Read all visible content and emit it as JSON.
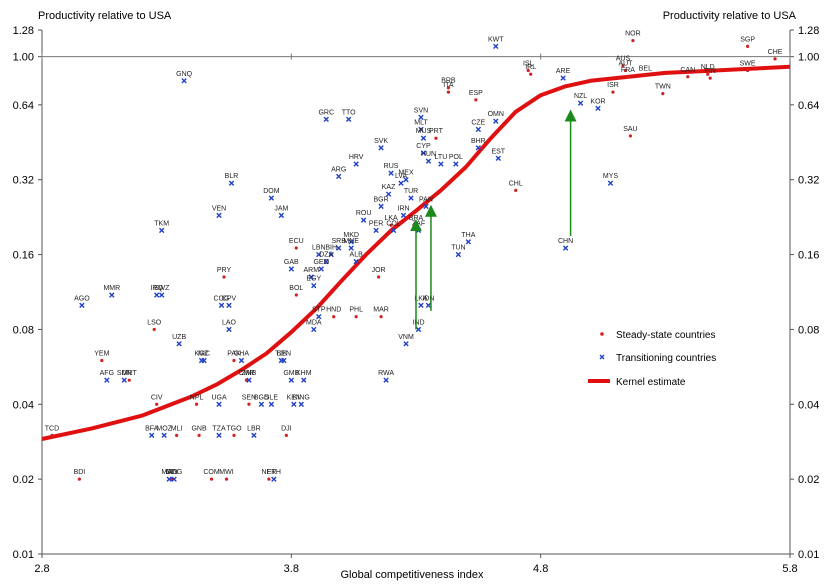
{
  "chart_data": {
    "type": "scatter",
    "title_left": "Productivity relative to USA",
    "title_right": "Productivity relative to USA",
    "xlabel": "Global competitiveness index",
    "xlim": [
      2.8,
      5.8
    ],
    "ylim": [
      0.01,
      1.28
    ],
    "y_scale": "log",
    "x_ticks": [
      "2.8",
      "3.8",
      "4.8",
      "5.8"
    ],
    "y_ticks": [
      "0.01",
      "0.02",
      "0.04",
      "0.08",
      "0.16",
      "0.32",
      "0.64",
      "1.00",
      "1.28"
    ],
    "reference_line": 1.0,
    "legend": {
      "position": "right",
      "entries": [
        "Steady-state countries",
        "Transitioning countries",
        "Kernel estimate"
      ]
    },
    "colors": {
      "steady": "#d42020",
      "transitioning": "#2040c8",
      "kernel": "#e01010",
      "arrow": "#1a8a1a"
    },
    "steady_state": [
      {
        "label": "NOR",
        "x": 5.17,
        "y": 1.16
      },
      {
        "label": "SGP",
        "x": 5.63,
        "y": 1.1
      },
      {
        "label": "CHE",
        "x": 5.74,
        "y": 0.98
      },
      {
        "label": "AUS",
        "x": 5.13,
        "y": 0.92
      },
      {
        "label": "AUT",
        "x": 5.14,
        "y": 0.88
      },
      {
        "label": "FRA",
        "x": 5.15,
        "y": 0.83
      },
      {
        "label": "BEL",
        "x": 5.22,
        "y": 0.84
      },
      {
        "label": "SWE",
        "x": 5.63,
        "y": 0.88
      },
      {
        "label": "CAN",
        "x": 5.39,
        "y": 0.83
      },
      {
        "label": "NLD",
        "x": 5.47,
        "y": 0.85
      },
      {
        "label": "FIN",
        "x": 5.48,
        "y": 0.82
      },
      {
        "label": "TWN",
        "x": 5.29,
        "y": 0.71
      },
      {
        "label": "ISR",
        "x": 5.09,
        "y": 0.72
      },
      {
        "label": "SAU",
        "x": 5.16,
        "y": 0.48
      },
      {
        "label": "ISL",
        "x": 4.75,
        "y": 0.88
      },
      {
        "label": "IRL",
        "x": 4.76,
        "y": 0.85
      },
      {
        "label": "ESP",
        "x": 4.54,
        "y": 0.67
      },
      {
        "label": "ITA",
        "x": 4.43,
        "y": 0.72
      },
      {
        "label": "BRB",
        "x": 4.43,
        "y": 0.75
      },
      {
        "label": "PRT",
        "x": 4.38,
        "y": 0.47
      },
      {
        "label": "CHL",
        "x": 4.7,
        "y": 0.29
      },
      {
        "label": "LKA",
        "x": 4.2,
        "y": 0.21
      },
      {
        "label": "ECU",
        "x": 3.82,
        "y": 0.17
      },
      {
        "label": "PRY",
        "x": 3.53,
        "y": 0.13
      },
      {
        "label": "BOL",
        "x": 3.82,
        "y": 0.11
      },
      {
        "label": "JOR",
        "x": 4.15,
        "y": 0.13
      },
      {
        "label": "HND",
        "x": 3.97,
        "y": 0.09
      },
      {
        "label": "PHL",
        "x": 4.06,
        "y": 0.09
      },
      {
        "label": "MAR",
        "x": 4.16,
        "y": 0.09
      },
      {
        "label": "LSO",
        "x": 3.25,
        "y": 0.08
      },
      {
        "label": "YEM",
        "x": 3.04,
        "y": 0.06
      },
      {
        "label": "PAK",
        "x": 3.57,
        "y": 0.06
      },
      {
        "label": "CMR",
        "x": 3.62,
        "y": 0.05
      },
      {
        "label": "MRT",
        "x": 3.15,
        "y": 0.05
      },
      {
        "label": "CIV",
        "x": 3.26,
        "y": 0.04
      },
      {
        "label": "NPL",
        "x": 3.42,
        "y": 0.04
      },
      {
        "label": "SEN",
        "x": 3.63,
        "y": 0.04
      },
      {
        "label": "DJI",
        "x": 3.78,
        "y": 0.03
      },
      {
        "label": "GIN",
        "x": 3.32,
        "y": 0.02
      },
      {
        "label": "MLI",
        "x": 3.34,
        "y": 0.03
      },
      {
        "label": "GNB",
        "x": 3.43,
        "y": 0.03
      },
      {
        "label": "COM",
        "x": 3.48,
        "y": 0.02
      },
      {
        "label": "TGO",
        "x": 3.57,
        "y": 0.03
      },
      {
        "label": "MWI",
        "x": 3.54,
        "y": 0.02
      },
      {
        "label": "NER",
        "x": 3.71,
        "y": 0.02
      },
      {
        "label": "TCD",
        "x": 2.84,
        "y": 0.03
      },
      {
        "label": "BDI",
        "x": 2.95,
        "y": 0.02
      }
    ],
    "transitioning": [
      {
        "label": "KWT",
        "x": 4.62,
        "y": 1.1
      },
      {
        "label": "ARE",
        "x": 4.89,
        "y": 0.82
      },
      {
        "label": "NZL",
        "x": 4.96,
        "y": 0.65
      },
      {
        "label": "KOR",
        "x": 5.03,
        "y": 0.62
      },
      {
        "label": "GNQ",
        "x": 3.37,
        "y": 0.8
      },
      {
        "label": "GRC",
        "x": 3.94,
        "y": 0.56
      },
      {
        "label": "TTO",
        "x": 4.03,
        "y": 0.56
      },
      {
        "label": "SVN",
        "x": 4.32,
        "y": 0.57
      },
      {
        "label": "MLT",
        "x": 4.32,
        "y": 0.51
      },
      {
        "label": "MUS",
        "x": 4.33,
        "y": 0.47
      },
      {
        "label": "OMN",
        "x": 4.62,
        "y": 0.55
      },
      {
        "label": "CZE",
        "x": 4.55,
        "y": 0.51
      },
      {
        "label": "BHR",
        "x": 4.55,
        "y": 0.43
      },
      {
        "label": "CYP",
        "x": 4.33,
        "y": 0.41
      },
      {
        "label": "HUN",
        "x": 4.35,
        "y": 0.38
      },
      {
        "label": "LTU",
        "x": 4.4,
        "y": 0.37
      },
      {
        "label": "POL",
        "x": 4.46,
        "y": 0.37
      },
      {
        "label": "EST",
        "x": 4.63,
        "y": 0.39
      },
      {
        "label": "SVK",
        "x": 4.16,
        "y": 0.43
      },
      {
        "label": "HRV",
        "x": 4.06,
        "y": 0.37
      },
      {
        "label": "ARG",
        "x": 3.99,
        "y": 0.33
      },
      {
        "label": "RUS",
        "x": 4.2,
        "y": 0.34
      },
      {
        "label": "LVA",
        "x": 4.24,
        "y": 0.31
      },
      {
        "label": "MEX",
        "x": 4.26,
        "y": 0.32
      },
      {
        "label": "KAZ",
        "x": 4.19,
        "y": 0.28
      },
      {
        "label": "TUR",
        "x": 4.28,
        "y": 0.27
      },
      {
        "label": "BGR",
        "x": 4.16,
        "y": 0.25
      },
      {
        "label": "IRN",
        "x": 4.25,
        "y": 0.23
      },
      {
        "label": "PAN",
        "x": 4.34,
        "y": 0.25
      },
      {
        "label": "BRA",
        "x": 4.3,
        "y": 0.21
      },
      {
        "label": "ZAF",
        "x": 4.31,
        "y": 0.2
      },
      {
        "label": "ROU",
        "x": 4.09,
        "y": 0.22
      },
      {
        "label": "PER",
        "x": 4.14,
        "y": 0.2
      },
      {
        "label": "COL",
        "x": 4.21,
        "y": 0.2
      },
      {
        "label": "MKD",
        "x": 4.04,
        "y": 0.18
      },
      {
        "label": "SRB",
        "x": 3.99,
        "y": 0.17
      },
      {
        "label": "MNE",
        "x": 4.04,
        "y": 0.17
      },
      {
        "label": "BIH",
        "x": 3.96,
        "y": 0.16
      },
      {
        "label": "LBN",
        "x": 3.91,
        "y": 0.16
      },
      {
        "label": "DZA",
        "x": 3.94,
        "y": 0.15
      },
      {
        "label": "ALB",
        "x": 4.06,
        "y": 0.15
      },
      {
        "label": "GEO",
        "x": 3.92,
        "y": 0.14
      },
      {
        "label": "ARM",
        "x": 3.88,
        "y": 0.13
      },
      {
        "label": "EGY",
        "x": 3.89,
        "y": 0.12
      },
      {
        "label": "GAB",
        "x": 3.8,
        "y": 0.14
      },
      {
        "label": "THA",
        "x": 4.51,
        "y": 0.18
      },
      {
        "label": "TUN",
        "x": 4.47,
        "y": 0.16
      },
      {
        "label": "DOM",
        "x": 3.72,
        "y": 0.27
      },
      {
        "label": "JAM",
        "x": 3.76,
        "y": 0.23
      },
      {
        "label": "BLR",
        "x": 3.56,
        "y": 0.31
      },
      {
        "label": "VEN",
        "x": 3.51,
        "y": 0.23
      },
      {
        "label": "TKM",
        "x": 3.28,
        "y": 0.2
      },
      {
        "label": "MMR",
        "x": 3.08,
        "y": 0.11
      },
      {
        "label": "AGO",
        "x": 2.96,
        "y": 0.1
      },
      {
        "label": "SWZ",
        "x": 3.28,
        "y": 0.11
      },
      {
        "label": "IRQ",
        "x": 3.26,
        "y": 0.11
      },
      {
        "label": "COG",
        "x": 3.52,
        "y": 0.1
      },
      {
        "label": "CPV",
        "x": 3.55,
        "y": 0.1
      },
      {
        "label": "LAO",
        "x": 3.55,
        "y": 0.08
      },
      {
        "label": "UZB",
        "x": 3.35,
        "y": 0.07
      },
      {
        "label": "KGZ",
        "x": 3.44,
        "y": 0.06
      },
      {
        "label": "NIC",
        "x": 3.45,
        "y": 0.06
      },
      {
        "label": "GHA",
        "x": 3.6,
        "y": 0.06
      },
      {
        "label": "ZMB",
        "x": 3.63,
        "y": 0.05
      },
      {
        "label": "TJK",
        "x": 3.76,
        "y": 0.06
      },
      {
        "label": "BEN",
        "x": 3.77,
        "y": 0.06
      },
      {
        "label": "STP",
        "x": 3.91,
        "y": 0.09
      },
      {
        "label": "MDA",
        "x": 3.89,
        "y": 0.08
      },
      {
        "label": "LKA",
        "x": 4.32,
        "y": 0.1
      },
      {
        "label": "IND",
        "x": 4.31,
        "y": 0.08
      },
      {
        "label": "VNM",
        "x": 4.26,
        "y": 0.07
      },
      {
        "label": "IDN",
        "x": 4.35,
        "y": 0.1
      },
      {
        "label": "CHN",
        "x": 4.9,
        "y": 0.17
      },
      {
        "label": "MYS",
        "x": 5.08,
        "y": 0.31
      },
      {
        "label": "AFG",
        "x": 3.06,
        "y": 0.05
      },
      {
        "label": "SDN",
        "x": 3.13,
        "y": 0.05
      },
      {
        "label": "KHM",
        "x": 3.85,
        "y": 0.05
      },
      {
        "label": "GMB",
        "x": 3.8,
        "y": 0.05
      },
      {
        "label": "KING",
        "x": 3.84,
        "y": 0.04
      },
      {
        "label": "BGD",
        "x": 3.68,
        "y": 0.04
      },
      {
        "label": "SLE",
        "x": 3.72,
        "y": 0.04
      },
      {
        "label": "KEN",
        "x": 3.81,
        "y": 0.04
      },
      {
        "label": "UGA",
        "x": 3.51,
        "y": 0.04
      },
      {
        "label": "TZA",
        "x": 3.51,
        "y": 0.03
      },
      {
        "label": "LBR",
        "x": 3.65,
        "y": 0.03
      },
      {
        "label": "BFA",
        "x": 3.24,
        "y": 0.03
      },
      {
        "label": "MOZ",
        "x": 3.29,
        "y": 0.03
      },
      {
        "label": "MDG",
        "x": 3.33,
        "y": 0.02
      },
      {
        "label": "MAD",
        "x": 3.31,
        "y": 0.02
      },
      {
        "label": "ETH",
        "x": 3.73,
        "y": 0.02
      },
      {
        "label": "RWA",
        "x": 4.18,
        "y": 0.05
      }
    ],
    "kernel": {
      "x": [
        2.8,
        3.0,
        3.2,
        3.4,
        3.5,
        3.6,
        3.7,
        3.8,
        3.9,
        4.0,
        4.1,
        4.2,
        4.3,
        4.4,
        4.5,
        4.6,
        4.7,
        4.8,
        4.9,
        5.0,
        5.1,
        5.2,
        5.3,
        5.4,
        5.5,
        5.6,
        5.7,
        5.8
      ],
      "y": [
        0.029,
        0.032,
        0.036,
        0.043,
        0.048,
        0.055,
        0.064,
        0.078,
        0.097,
        0.125,
        0.16,
        0.2,
        0.24,
        0.29,
        0.36,
        0.47,
        0.6,
        0.7,
        0.76,
        0.8,
        0.82,
        0.84,
        0.86,
        0.87,
        0.88,
        0.89,
        0.9,
        0.91
      ]
    },
    "arrows": [
      {
        "x": 4.3,
        "y_from": 0.08,
        "y_to": 0.21
      },
      {
        "x": 4.36,
        "y_from": 0.095,
        "y_to": 0.24
      },
      {
        "x": 4.92,
        "y_from": 0.19,
        "y_to": 0.58
      }
    ]
  }
}
